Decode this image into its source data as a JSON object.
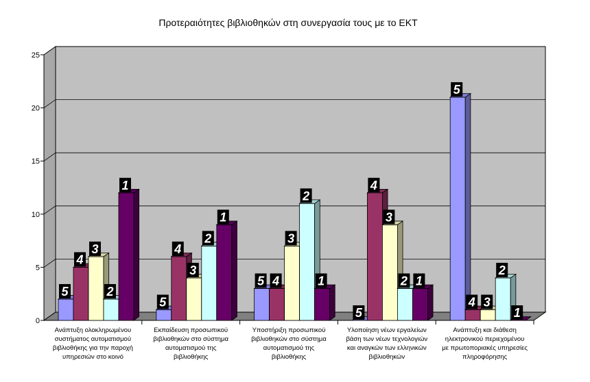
{
  "chart_data": {
    "type": "bar",
    "title": "Προτεραιότητες βιβλιοθηκών στη συνεργασία τους με το ΕΚΤ",
    "xlabel": "",
    "ylabel": "",
    "ylim": [
      0,
      25
    ],
    "yticks": [
      "0",
      "5",
      "10",
      "15",
      "20",
      "25"
    ],
    "grid": true,
    "legend": "none",
    "categories": [
      [
        "Ανάπτυξη ολοκληρωμένου",
        "συστήματος αυτοματισμού",
        "βιβλιοθήκης για την παροχή",
        "υπηρεσιών στο κοινό"
      ],
      [
        "Εκπαίδευση προσωπικού",
        "βιβλιοθηκών στο σύστημα",
        "αυτοματισμού της",
        "βιβλιοθήκης"
      ],
      [
        "Υποστήριξη προσωπικού",
        "βιβλιοθηκών στο σύστημα",
        "αυτοματισμού της",
        "βιβλιοθήκης"
      ],
      [
        "Υλοποίηση νέων εργαλείων",
        "βάση των νέων τεχνολογιών",
        "και αναγκών των ελληνικών",
        "βιβλιοθηκών"
      ],
      [
        "Ανάπτυξη και διάθεση",
        "ηλεκτρονικού περιεχομένου",
        "με πρωτοποριακές υπηρεσίες",
        "πληροφόρησης"
      ]
    ],
    "series": [
      {
        "label": "5",
        "color": "#9999ff",
        "values": [
          2,
          1,
          3,
          0,
          21
        ]
      },
      {
        "label": "4",
        "color": "#993366",
        "values": [
          5,
          6,
          3,
          12,
          1
        ]
      },
      {
        "label": "3",
        "color": "#ffffcc",
        "values": [
          6,
          4,
          7,
          9,
          1
        ]
      },
      {
        "label": "2",
        "color": "#ccffff",
        "values": [
          2,
          7,
          11,
          3,
          4
        ]
      },
      {
        "label": "1",
        "color": "#660066",
        "values": [
          12,
          9,
          3,
          3,
          0
        ]
      }
    ],
    "colors": {
      "wall": "#c0c0c0",
      "floor": "#808080",
      "gridline": "#000000"
    }
  }
}
